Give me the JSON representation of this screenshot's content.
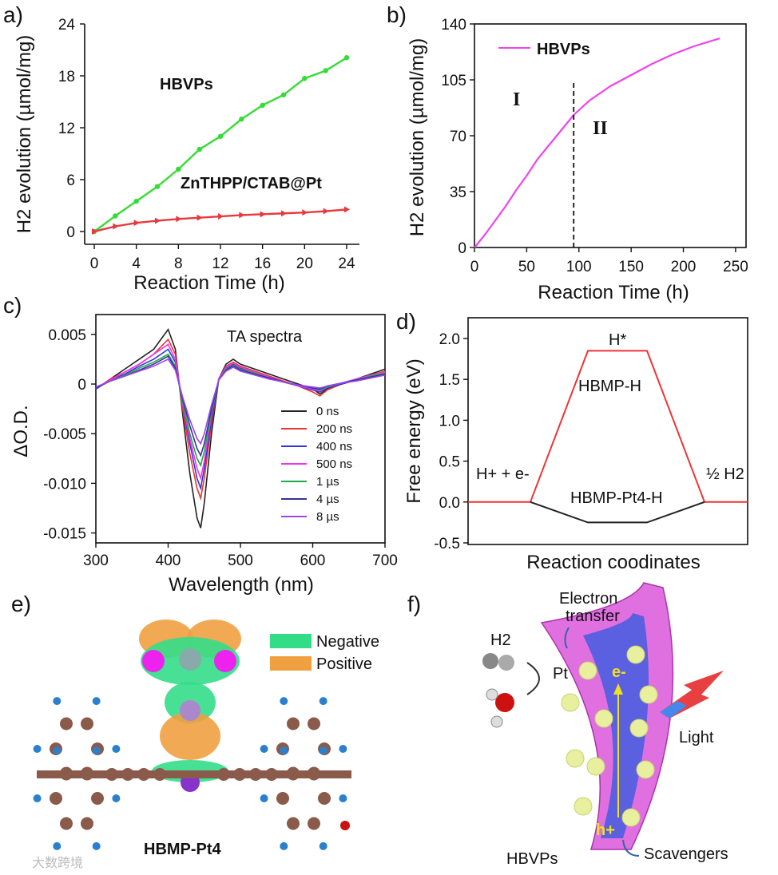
{
  "panels": {
    "a": "a)",
    "b": "b)",
    "c": "c)",
    "d": "d)",
    "e": "e)",
    "f": "f)"
  },
  "chart_data": [
    {
      "panel": "a",
      "type": "line",
      "xlabel": "Reaction Time (h)",
      "ylabel": "H2 evolution (µmol/mg)",
      "xlim": [
        0,
        24
      ],
      "ylim": [
        0,
        24
      ],
      "xticks": [
        "0",
        "4",
        "8",
        "12",
        "16",
        "20",
        "24"
      ],
      "yticks": [
        "0",
        "6",
        "12",
        "18",
        "24"
      ],
      "series": [
        {
          "name": "HBVPs",
          "color": "#33dd33",
          "x": [
            0,
            2,
            4,
            6,
            8,
            10,
            12,
            14,
            16,
            18,
            20,
            22,
            24
          ],
          "y": [
            0,
            1.8,
            3.5,
            5.2,
            7.2,
            9.5,
            11.0,
            13.0,
            14.6,
            15.8,
            17.7,
            18.6,
            20.1
          ]
        },
        {
          "name": "ZnTHPP/CTAB@Pt",
          "color": "#e8383d",
          "x": [
            0,
            2,
            4,
            6,
            8,
            10,
            12,
            14,
            16,
            18,
            20,
            22,
            24
          ],
          "y": [
            0,
            0.6,
            1.0,
            1.25,
            1.45,
            1.6,
            1.75,
            1.9,
            2.0,
            2.1,
            2.2,
            2.35,
            2.55
          ]
        }
      ]
    },
    {
      "panel": "b",
      "type": "line",
      "xlabel": "Reaction Time (h)",
      "ylabel": "H2 evolution (µmol/mg)",
      "xlim": [
        0,
        260
      ],
      "ylim": [
        0,
        140
      ],
      "xticks": [
        "0",
        "50",
        "100",
        "150",
        "200",
        "250"
      ],
      "yticks": [
        "0",
        "35",
        "70",
        "105",
        "140"
      ],
      "divider_x": 95,
      "regions": [
        "I",
        "II"
      ],
      "series": [
        {
          "name": "HBVPs",
          "color": "#ee44ee",
          "x": [
            0,
            10,
            20,
            30,
            40,
            50,
            60,
            70,
            80,
            90,
            95,
            110,
            130,
            150,
            170,
            190,
            210,
            235
          ],
          "y": [
            0,
            8,
            17,
            26,
            36,
            45,
            55,
            63,
            71,
            79,
            83,
            92,
            101,
            108,
            115,
            121,
            126,
            131
          ]
        }
      ]
    },
    {
      "panel": "c",
      "type": "line",
      "title": "TA spectra",
      "xlabel": "Wavelength (nm)",
      "ylabel": "ΔO.D.",
      "xlim": [
        300,
        700
      ],
      "ylim": [
        -0.016,
        0.007
      ],
      "xticks": [
        "300",
        "400",
        "500",
        "600",
        "700"
      ],
      "yticks": [
        "0.005",
        "0",
        "-0.005",
        "-0.010",
        "-0.015"
      ],
      "x": [
        300,
        320,
        340,
        360,
        380,
        400,
        410,
        420,
        430,
        440,
        445,
        450,
        460,
        470,
        480,
        490,
        500,
        520,
        540,
        560,
        580,
        600,
        610,
        620,
        640,
        660,
        680,
        700
      ],
      "series": [
        {
          "name": "0 ns",
          "color": "#222222",
          "y": [
            -0.0005,
            0.0005,
            0.0015,
            0.0025,
            0.0035,
            0.0055,
            0.0035,
            -0.003,
            -0.009,
            -0.0135,
            -0.0145,
            -0.012,
            -0.005,
            0.0005,
            0.002,
            0.0025,
            0.002,
            0.0015,
            0.001,
            0.0005,
            0.0,
            -0.0005,
            -0.001,
            -0.0005,
            0.0,
            0.0005,
            0.001,
            0.0015
          ]
        },
        {
          "name": "200 ns",
          "color": "#ee3333",
          "y": [
            -0.0005,
            0.0005,
            0.0012,
            0.002,
            0.003,
            0.0045,
            0.003,
            -0.0025,
            -0.007,
            -0.0105,
            -0.0115,
            -0.0095,
            -0.004,
            0.0005,
            0.0018,
            0.0022,
            0.0018,
            0.0013,
            0.0008,
            0.0003,
            -0.0002,
            -0.0008,
            -0.0012,
            -0.0006,
            0.0,
            0.0004,
            0.0009,
            0.0013
          ]
        },
        {
          "name": "400 ns",
          "color": "#3333dd",
          "y": [
            -0.0005,
            0.0004,
            0.001,
            0.0018,
            0.0025,
            0.0035,
            0.0022,
            -0.002,
            -0.006,
            -0.0095,
            -0.0105,
            -0.0085,
            -0.0035,
            0.0004,
            0.0016,
            0.002,
            0.0016,
            0.0011,
            0.0007,
            0.0002,
            -0.0002,
            -0.0006,
            -0.0008,
            -0.0004,
            0.0,
            0.0004,
            0.0008,
            0.0012
          ]
        },
        {
          "name": "500 ns",
          "color": "#ee33ee",
          "y": [
            -0.0004,
            0.0004,
            0.0012,
            0.002,
            0.003,
            0.004,
            0.0025,
            -0.002,
            -0.0055,
            -0.0085,
            -0.0095,
            -0.0078,
            -0.003,
            0.0005,
            0.0017,
            0.0021,
            0.0017,
            0.0012,
            0.0007,
            0.0002,
            -0.0002,
            -0.0005,
            -0.0007,
            -0.0003,
            0.0001,
            0.0005,
            0.0009,
            0.0012
          ]
        },
        {
          "name": "1 µs",
          "color": "#22aa44",
          "y": [
            -0.0004,
            0.0003,
            0.0009,
            0.0016,
            0.0022,
            0.003,
            0.0018,
            -0.0018,
            -0.005,
            -0.0075,
            -0.0082,
            -0.0068,
            -0.0028,
            0.0004,
            0.0015,
            0.0019,
            0.0015,
            0.0011,
            0.0006,
            0.0002,
            -0.0001,
            -0.0004,
            -0.0006,
            -0.0003,
            0.0001,
            0.0004,
            0.0008,
            0.0011
          ]
        },
        {
          "name": "4 µs",
          "color": "#333399",
          "y": [
            -0.0004,
            0.0003,
            0.0008,
            0.0014,
            0.002,
            0.0028,
            0.0016,
            -0.0015,
            -0.0042,
            -0.0065,
            -0.0072,
            -0.006,
            -0.0025,
            0.0004,
            0.0014,
            0.0018,
            0.0014,
            0.001,
            0.0006,
            0.0002,
            -0.0001,
            -0.0004,
            -0.0005,
            -0.0002,
            0.0001,
            0.0004,
            0.0007,
            0.001
          ]
        },
        {
          "name": "8 µs",
          "color": "#9944ee",
          "y": [
            -0.0003,
            0.0003,
            0.0008,
            0.0013,
            0.0018,
            0.0025,
            0.0014,
            -0.0013,
            -0.0036,
            -0.0055,
            -0.006,
            -0.005,
            -0.0021,
            0.0004,
            0.0013,
            0.0017,
            0.0013,
            0.0009,
            0.0005,
            0.0002,
            -0.0001,
            -0.0003,
            -0.0004,
            -0.0002,
            0.0001,
            0.0003,
            0.0006,
            0.0009
          ]
        }
      ]
    },
    {
      "panel": "d",
      "type": "line",
      "xlabel": "Reaction coodinates",
      "ylabel": "Free energy (eV)",
      "ylim": [
        -0.5,
        2.0
      ],
      "yticks": [
        "2.0",
        "1.5",
        "1.0",
        "0.5",
        "0.0",
        "-0.5"
      ],
      "labels": {
        "top": "H*",
        "red_path": "HBMP-H",
        "black_path": "HBMP-Pt4-H",
        "left": "H+ + e-",
        "right": "½ H2"
      },
      "series": [
        {
          "name": "HBMP-H",
          "color": "#ee3333",
          "x": [
            0,
            1,
            2,
            3,
            4,
            5
          ],
          "y": [
            0.0,
            0.0,
            1.85,
            1.85,
            0.0,
            0.0
          ]
        },
        {
          "name": "HBMP-Pt4-H",
          "color": "#222222",
          "x": [
            1,
            2,
            3,
            4
          ],
          "y": [
            0.0,
            -0.25,
            -0.25,
            0.0
          ]
        }
      ]
    }
  ],
  "panel_e": {
    "legend": [
      {
        "label": "Negative",
        "color": "#33dd88"
      },
      {
        "label": "Positive",
        "color": "#f0a040"
      }
    ],
    "caption": "HBMP-Pt4"
  },
  "panel_f": {
    "h2": "H2",
    "electron_transfer": [
      "Electron",
      "transfer"
    ],
    "pt": "Pt",
    "e": "e-",
    "h": "h+",
    "light": "Light",
    "hbvps": "HBVPs",
    "scavengers": "Scavengers"
  },
  "watermark": "大数跨境"
}
